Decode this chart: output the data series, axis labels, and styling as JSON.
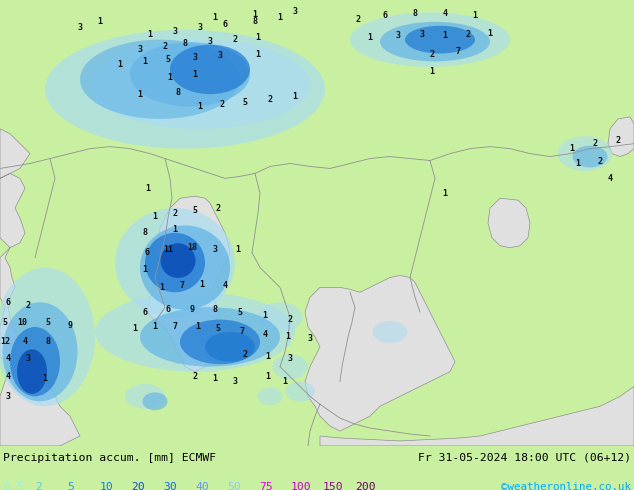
{
  "title_left": "Precipitation accum. [mm] ECMWF",
  "title_right": "Fr 31-05-2024 18:00 UTC (06+12)",
  "credit": "©weatheronline.co.uk",
  "legend_values": [
    "0.5",
    "2",
    "5",
    "10",
    "20",
    "30",
    "40",
    "50",
    "75",
    "100",
    "150",
    "200"
  ],
  "legend_colors": [
    "#96f0f0",
    "#5ac8f0",
    "#28a0f0",
    "#1478e6",
    "#0a50d2",
    "#1464f0",
    "#6496f0",
    "#96c8fa",
    "#e600e6",
    "#c800c8",
    "#960096",
    "#640064"
  ],
  "bg_color": "#c8f0a0",
  "land_color": "#e0e0e0",
  "sea_color": "#c8f0a0",
  "border_color": "#909090",
  "fig_width": 6.34,
  "fig_height": 4.9,
  "dpi": 100,
  "precip_light": "#aadcf0",
  "precip_mid": "#64b4e6",
  "precip_dark": "#1e78d2",
  "precip_vdark": "#0a4cb4"
}
